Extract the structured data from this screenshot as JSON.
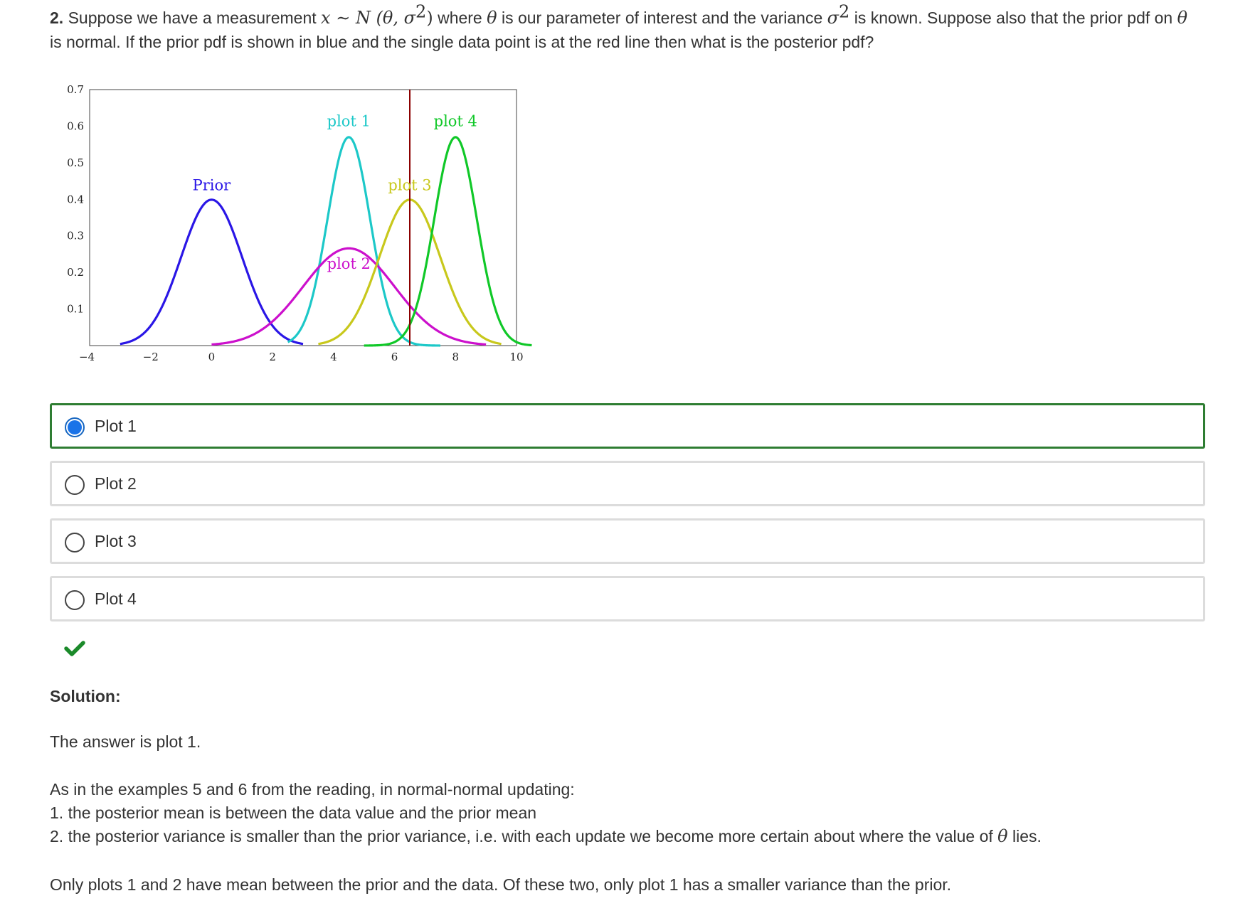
{
  "question": {
    "number": "2.",
    "text_1": " Suppose we have a measurement ",
    "math_x": "x",
    "math_sim": " ∼ ",
    "math_N": "N",
    "math_params": " (θ, σ",
    "math_sq": "2",
    "math_close": ")",
    "text_2": " where ",
    "theta_1": "θ",
    "text_3": " is our parameter of interest and the variance ",
    "sigma": "σ",
    "sigma_sq": "2",
    "text_4": " is known. Suppose also that the prior pdf on ",
    "theta_2": "θ",
    "text_5": " is normal. If the prior pdf is shown in blue and the single data point is at the red line then what is the posterior pdf?"
  },
  "chart_data": {
    "type": "line",
    "xlim": [
      -4,
      10
    ],
    "ylim": [
      0,
      0.7
    ],
    "x_ticks": [
      "−4",
      "−2",
      "0",
      "2",
      "4",
      "6",
      "8",
      "10"
    ],
    "y_ticks": [
      "0.1",
      "0.2",
      "0.3",
      "0.4",
      "0.5",
      "0.6",
      "0.7"
    ],
    "data_line_x": 6.5,
    "series": [
      {
        "name": "Prior",
        "mean": 0,
        "sd": 1,
        "x_range": [
          -3,
          3
        ],
        "color": "#2a16e6"
      },
      {
        "name": "plot 1",
        "mean": 4.5,
        "sd": 0.7,
        "x_range": [
          2.5,
          7.5
        ],
        "color": "#1cc8c8"
      },
      {
        "name": "plot 2",
        "mean": 4.5,
        "sd": 1.5,
        "x_range": [
          0,
          9
        ],
        "color": "#cc10cc"
      },
      {
        "name": "plot 3",
        "mean": 6.5,
        "sd": 1,
        "x_range": [
          3.5,
          9.5
        ],
        "color": "#c8c81c"
      },
      {
        "name": "plot 4",
        "mean": 8,
        "sd": 0.7,
        "x_range": [
          5,
          10.5
        ],
        "color": "#10c828"
      }
    ],
    "data_line_color": "#8b0000"
  },
  "options": [
    {
      "label": "Plot 1",
      "selected": true
    },
    {
      "label": "Plot 2",
      "selected": false
    },
    {
      "label": "Plot 3",
      "selected": false
    },
    {
      "label": "Plot 4",
      "selected": false
    }
  ],
  "solution": {
    "title": "Solution:",
    "answer": "The answer is plot 1.",
    "intro": "As in the examples 5 and 6 from the reading, in normal-normal updating:",
    "point_1": "1. the posterior mean is between the data value and the prior mean",
    "point_2_text": "2. the posterior variance is smaller than the prior variance, i.e. with each update we become more certain about where the value of ",
    "point_2_theta": "θ",
    "point_2_end": " lies.",
    "conclusion": "Only plots 1 and 2 have mean between the prior and the data. Of these two, only plot 1 has a smaller variance than the prior."
  }
}
